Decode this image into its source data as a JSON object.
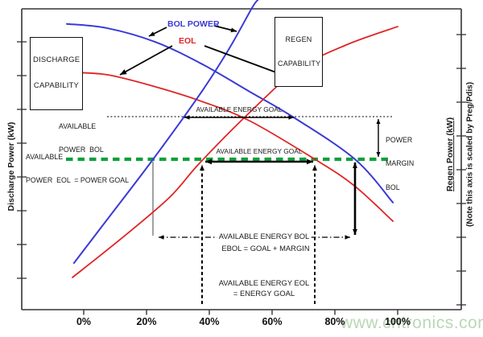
{
  "axes": {
    "left_title": "Discharge Power (kW)",
    "right_title": "Regen Power (kW)",
    "right_note": "(Note this axis is scaled by Preg/Pdis)"
  },
  "labels": {
    "discharge_capability_line1": "DISCHARGE",
    "discharge_capability_line2": "CAPABILITY",
    "regen_capability_line1": "REGEN",
    "regen_capability_line2": "CAPABILITY",
    "bol_power": "BOL POWER",
    "eol": "EOL",
    "available_power_bol_line1": "AVAILABLE",
    "available_power_bol_line2": "POWER  BOL",
    "available_power_eol_line1": "AVAILABLE",
    "available_power_eol_line2": "POWER  EOL  = POWER GOAL",
    "available_energy_goal_top": "AVAILABLE ENERGY GOAL",
    "available_energy_goal_mid": "AVAILABLE ENERGY GOAL",
    "power_margin_line1": "POWER",
    "power_margin_line2": "MARGIN",
    "power_margin_line3": "BOL",
    "available_energy_bol": "AVAILABLE ENERGY BOL",
    "ebol_equation": "EBOL = GOAL + MARGIN",
    "available_energy_eol_line1": "AVAILABLE ENERGY EOL",
    "available_energy_eol_line2": "= ENERGY GOAL"
  },
  "watermark": "www.cntronics.com",
  "colors": {
    "bol_blue": "#3a3ad6",
    "eol_red": "#e02424",
    "goal_green": "#0da03c",
    "annotation_black": "#000000"
  },
  "chart_data": {
    "type": "line",
    "title": "",
    "xlabel_ticks_unit": "%",
    "x_ticks": [
      "0%",
      "20%",
      "40%",
      "60%",
      "80%",
      "100%"
    ],
    "x_tick_values": [
      0,
      20,
      40,
      60,
      80,
      100
    ],
    "ylabel_left": "Discharge Power (kW)",
    "ylabel_right": "Regen Power (kW) (Note this axis is scaled by Preg/Pdis)",
    "y_scale_note": "no numeric y ticks shown; y values are relative power 0-100",
    "legend_position": "inline-callouts",
    "grid": false,
    "series": [
      {
        "name": "bol-discharge-power-capability",
        "color": "#3a3ad6",
        "width": 2,
        "x": [
          -5.4,
          7.4,
          22.8,
          37.4,
          52.8,
          66.9,
          86.4,
          98.5
        ],
        "y": [
          95,
          93.6,
          89,
          81.8,
          72.5,
          63.9,
          50,
          35.6
        ]
      },
      {
        "name": "eol-discharge-power-capability",
        "color": "#e02424",
        "width": 1.8,
        "x": [
          -5.4,
          7.4,
          22.8,
          37.4,
          52.8,
          74.1,
          86.2,
          98.5
        ],
        "y": [
          78.9,
          78.1,
          74.1,
          69.3,
          62.8,
          49.7,
          41.2,
          29.4
        ]
      },
      {
        "name": "bol-regen-power-capability",
        "color": "#3a3ad6",
        "width": 2,
        "x": [
          -3.1,
          6.7,
          22.1,
          37.4,
          46.4,
          53.6,
          55.4
        ],
        "y": [
          15.5,
          28.9,
          50,
          72.2,
          86.9,
          100.3,
          102.9
        ]
      },
      {
        "name": "eol-regen-power-capability",
        "color": "#e02424",
        "width": 1.8,
        "x": [
          -3.6,
          11.8,
          27.2,
          36.9,
          52.8,
          68.2,
          83.6,
          100
        ],
        "y": [
          10.7,
          23.5,
          37.2,
          48.7,
          65.5,
          79.9,
          88,
          94.1
        ]
      }
    ],
    "annotations": [
      {
        "name": "border-top",
        "layer": 0,
        "points": [
          [
            27,
            11
          ],
          [
            573,
            11
          ]
        ],
        "color": "#333",
        "width": 1.5
      },
      {
        "name": "axis-left",
        "layer": 0,
        "points": [
          [
            27,
            11
          ],
          [
            27,
            385
          ]
        ],
        "color": "#333",
        "width": 1.6
      },
      {
        "name": "axis-right",
        "layer": 0,
        "points": [
          [
            573,
            11
          ],
          [
            573,
            385
          ]
        ],
        "color": "#333",
        "width": 1.6
      },
      {
        "name": "axis-bottom",
        "layer": 0,
        "points": [
          [
            27,
            385
          ],
          [
            573,
            385
          ]
        ],
        "color": "#333",
        "width": 1.6
      },
      {
        "name": "available-power-bol-dotted-line",
        "layer": 0,
        "points": [
          [
            133,
            145
          ],
          [
            487,
            145
          ]
        ],
        "color": "#000",
        "width": 1.1,
        "dash": "2 2.4"
      },
      {
        "name": "power-goal-green-dashed-line",
        "layer": 0,
        "points": [
          [
            82,
            198
          ],
          [
            487,
            198
          ]
        ],
        "color": "#0da03c",
        "width": 4.2,
        "dash": "8.5 6"
      },
      {
        "name": "drop-line-bol-regen",
        "layer": 0,
        "points": [
          [
            190,
            201
          ],
          [
            190,
            293
          ]
        ],
        "color": "#555",
        "width": 1.1
      },
      {
        "name": "energy-goal-arrow-top",
        "layer": 2,
        "points": [
          [
            229,
            146
          ],
          [
            365,
            146
          ]
        ],
        "color": "#000",
        "width": 1.4,
        "arrows": "both",
        "ah": 6.5
      },
      {
        "name": "energy-goal-arrow-mid",
        "layer": 2,
        "points": [
          [
            255,
            201
          ],
          [
            389,
            201
          ]
        ],
        "color": "#000",
        "width": 2.6,
        "arrows": "both",
        "ah": 8
      },
      {
        "name": "power-margin-arrow",
        "layer": 2,
        "points": [
          [
            470,
            148
          ],
          [
            470,
            195
          ]
        ],
        "color": "#000",
        "width": 1.4,
        "arrows": "both",
        "ah": 6
      },
      {
        "name": "drop-dashed-left",
        "layer": 2,
        "points": [
          [
            251,
            378
          ],
          [
            251,
            205
          ]
        ],
        "color": "#000",
        "width": 2,
        "dash": "4 3.2",
        "arrows": "end",
        "ah": 7
      },
      {
        "name": "drop-dashed-right",
        "layer": 2,
        "points": [
          [
            391,
            378
          ],
          [
            391,
            205
          ]
        ],
        "color": "#000",
        "width": 2,
        "dash": "4 3.2",
        "arrows": "end",
        "ah": 7
      },
      {
        "name": "drop-solid-ebol",
        "layer": 2,
        "points": [
          [
            441,
            202
          ],
          [
            441,
            292
          ]
        ],
        "color": "#000",
        "width": 2.6,
        "arrows": "both",
        "ah": 7
      },
      {
        "name": "energy-bol-dashdot-arrow",
        "layer": 2,
        "points": [
          [
            197,
            295
          ],
          [
            435,
            295
          ]
        ],
        "color": "#000",
        "width": 1.2,
        "dash": "7 3 1.5 3",
        "arrows": "both",
        "ah": 6.5
      },
      {
        "name": "callout-arrow-bol-left",
        "layer": 2,
        "points": [
          [
            207,
            34
          ],
          [
            185,
            45
          ]
        ],
        "color": "#000",
        "width": 1.8,
        "arrows": "end",
        "ah": 7
      },
      {
        "name": "callout-arrow-bol-right",
        "layer": 2,
        "points": [
          [
            266,
            32
          ],
          [
            294,
            39
          ]
        ],
        "color": "#000",
        "width": 1.8,
        "arrows": "end",
        "ah": 7
      },
      {
        "name": "callout-arrow-eol-left",
        "layer": 2,
        "points": [
          [
            214,
            57
          ],
          [
            149,
            93
          ]
        ],
        "color": "#000",
        "width": 1.8,
        "arrows": "end",
        "ah": 8
      },
      {
        "name": "callout-arrow-eol-right",
        "layer": 2,
        "points": [
          [
            254,
            57
          ],
          [
            351,
            93
          ]
        ],
        "color": "#000",
        "width": 1.8,
        "arrows": "end",
        "ah": 8
      }
    ],
    "axis_ranges": {
      "x_percent": [
        0,
        100
      ]
    }
  }
}
